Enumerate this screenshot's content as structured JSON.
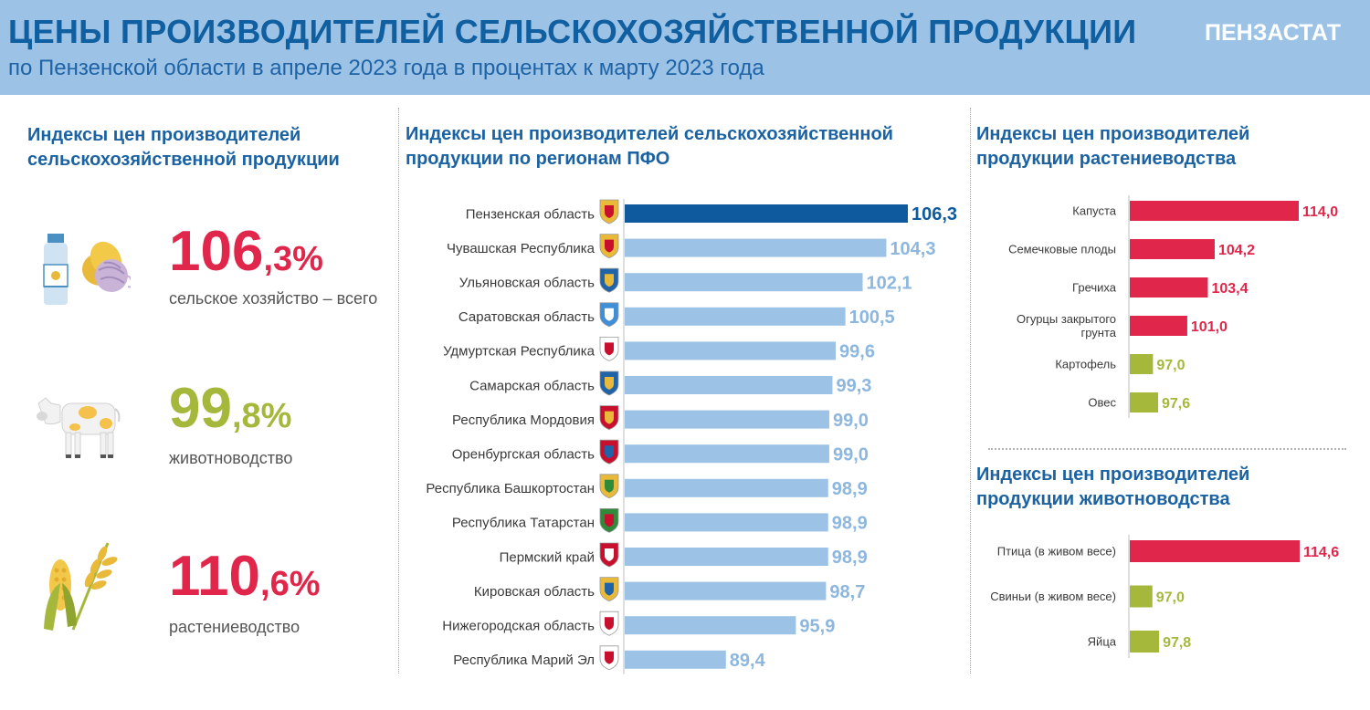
{
  "header": {
    "title": "ЦЕНЫ ПРОИЗВОДИТЕЛЕЙ СЕЛЬСКОХОЗЯЙСТВЕННОЙ ПРОДУКЦИИ",
    "subtitle": "по Пензенской области в апреле 2023 года в процентах к марту 2023 года",
    "brand": "ПЕНЗАСТАТ"
  },
  "colors": {
    "header_bg": "#9cc3e6",
    "title_blue": "#0f5fa1",
    "accent_red": "#e0264a",
    "accent_green": "#a5b83b",
    "bar_highlight": "#0f5a9e",
    "bar_default": "#9cc3e6",
    "bar_value_light": "#8db7de",
    "bar_positive": "#e0264a",
    "bar_negative": "#a5b83b"
  },
  "summary": {
    "title_line1": "Индексы цен производителей",
    "title_line2": "сельскохозяйственной продукции",
    "items": [
      {
        "big": "106",
        "small": ",3%",
        "label": "сельское хозяйство – всего",
        "color": "accent_red",
        "icon": "milk-bread-icon"
      },
      {
        "big": "99",
        "small": ",8%",
        "label": "животноводство",
        "color": "accent_green",
        "icon": "cow-icon"
      },
      {
        "big": "110",
        "small": ",6%",
        "label": "растениеводство",
        "color": "accent_red",
        "icon": "wheat-corn-icon"
      }
    ]
  },
  "regions_section": {
    "title_line1": "Индексы цен производителей сельскохозяйственной",
    "title_line2": "продукции по регионам ПФО"
  },
  "crops_section": {
    "title_line1": "Индексы цен производителей",
    "title_line2": "продукции растениеводства"
  },
  "livestock_section": {
    "title_line1": "Индексы цен производителей",
    "title_line2": "продукции животноводства"
  },
  "chart_data": [
    {
      "id": "regions",
      "type": "bar",
      "orientation": "horizontal",
      "categories": [
        "Пензенская область",
        "Чувашская Республика",
        "Ульяновская область",
        "Саратовская область",
        "Удмуртская Республика",
        "Самарская область",
        "Республика Мордовия",
        "Оренбургская область",
        "Республика Башкортостан",
        "Республика Татарстан",
        "Пермский край",
        "Кировская область",
        "Нижегородская область",
        "Республика Марий Эл"
      ],
      "values": [
        106.3,
        104.3,
        102.1,
        100.5,
        99.6,
        99.3,
        99.0,
        99.0,
        98.9,
        98.9,
        98.9,
        98.7,
        95.9,
        89.4
      ],
      "value_labels": [
        "106,3",
        "104,3",
        "102,1",
        "100,5",
        "99,6",
        "99,3",
        "99,0",
        "99,0",
        "98,9",
        "98,9",
        "98,9",
        "98,7",
        "95,9",
        "89,4"
      ],
      "highlight_index": 0,
      "xlim": [
        80,
        106.3
      ]
    },
    {
      "id": "crops",
      "type": "bar",
      "orientation": "horizontal",
      "categories": [
        "Капуста",
        "Семечковые плоды",
        "Гречиха",
        [
          "Огурцы закрытого",
          "грунта"
        ],
        "Картофель",
        "Овес"
      ],
      "values": [
        114.0,
        104.2,
        103.4,
        101.0,
        97.0,
        97.6
      ],
      "value_labels": [
        "114,0",
        "104,2",
        "103,4",
        "101,0",
        "97,0",
        "97,6"
      ],
      "xlim": [
        94.3,
        114.0
      ]
    },
    {
      "id": "livestock",
      "type": "bar",
      "orientation": "horizontal",
      "categories": [
        "Птица (в живом весе)",
        "Свиньи (в живом весе)",
        "Яйца"
      ],
      "values": [
        114.6,
        97.0,
        97.8
      ],
      "value_labels": [
        "114,6",
        "97,0",
        "97,8"
      ],
      "xlim": [
        94.3,
        114.6
      ]
    }
  ]
}
